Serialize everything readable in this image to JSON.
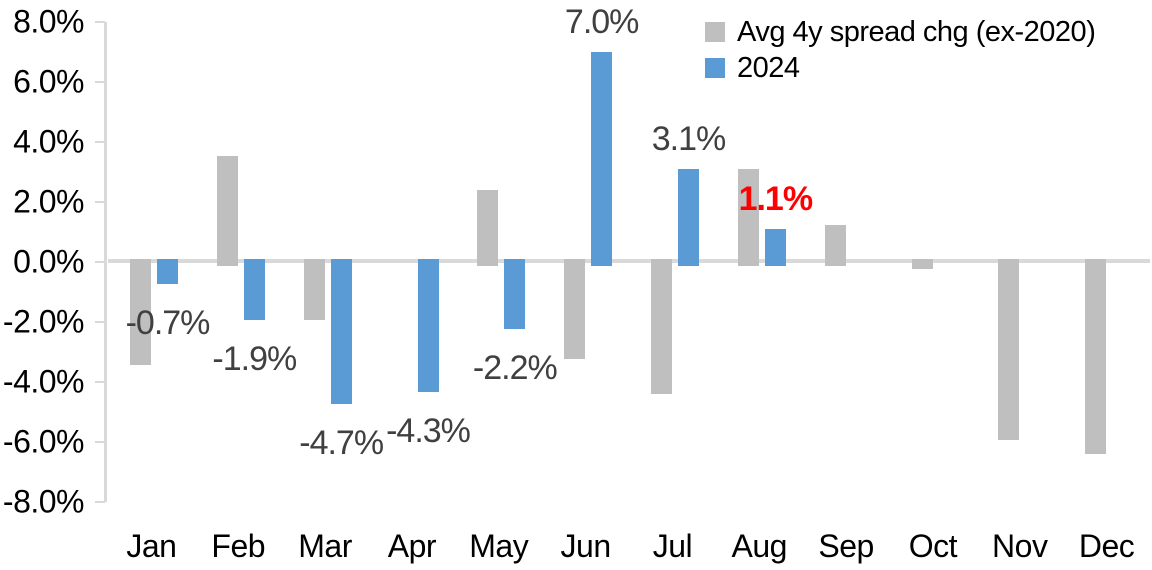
{
  "chart_data": {
    "type": "bar",
    "title": "",
    "xlabel": "",
    "ylabel": "",
    "categories": [
      "Jan",
      "Feb",
      "Mar",
      "Apr",
      "May",
      "Jun",
      "Jul",
      "Aug",
      "Sep",
      "Oct",
      "Nov",
      "Dec"
    ],
    "series": [
      {
        "name": "Avg 4y spread chg (ex-2020)",
        "color": "#BFBFBF",
        "values": [
          -3.4,
          3.55,
          -1.9,
          0,
          2.4,
          -3.2,
          -4.35,
          3.1,
          1.25,
          -0.2,
          -5.9,
          -6.35
        ]
      },
      {
        "name": "2024",
        "color": "#5B9BD5",
        "values": [
          -0.7,
          -1.9,
          -4.7,
          -4.3,
          -2.2,
          7.0,
          3.1,
          1.1,
          null,
          null,
          null,
          null
        ],
        "data_labels": [
          {
            "text": "-0.7%",
            "color": "#404040",
            "bold": false
          },
          {
            "text": "-1.9%",
            "color": "#404040",
            "bold": false
          },
          {
            "text": "-4.7%",
            "color": "#404040",
            "bold": false
          },
          {
            "text": "-4.3%",
            "color": "#404040",
            "bold": false
          },
          {
            "text": "-2.2%",
            "color": "#404040",
            "bold": false
          },
          {
            "text": "7.0%",
            "color": "#404040",
            "bold": false
          },
          {
            "text": "3.1%",
            "color": "#404040",
            "bold": false
          },
          {
            "text": "1.1%",
            "color": "#FF0000",
            "bold": true
          },
          null,
          null,
          null,
          null
        ]
      }
    ],
    "ylim": [
      -8,
      8
    ],
    "ytick_step": 2,
    "ytick_labels": [
      "8.0%",
      "6.0%",
      "4.0%",
      "2.0%",
      "0.0%",
      "-2.0%",
      "-4.0%",
      "-6.0%",
      "-8.0%"
    ],
    "grid": false,
    "legend_position": "top-right",
    "axis_color": "#D9D9D9",
    "data_label_color": "#404040",
    "highlight_color": "#FF0000"
  }
}
